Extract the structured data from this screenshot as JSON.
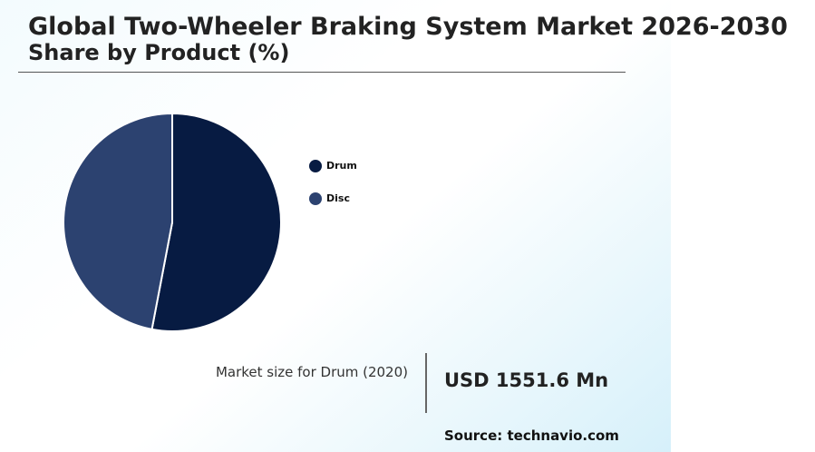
{
  "chart_data": {
    "type": "pie",
    "title": "Global Two-Wheeler Braking System Market 2026-2030",
    "subtitle": "Share by Product (%)",
    "series": [
      {
        "name": "Drum",
        "value": 53,
        "color": "#071b42"
      },
      {
        "name": "Disc",
        "value": 47,
        "color": "#2c4270"
      }
    ],
    "legend_position": "right"
  },
  "market_size": {
    "label": "Market size for Drum (2020)",
    "value": "USD 1551.6 Mn"
  },
  "source": "Source: technavio.com"
}
